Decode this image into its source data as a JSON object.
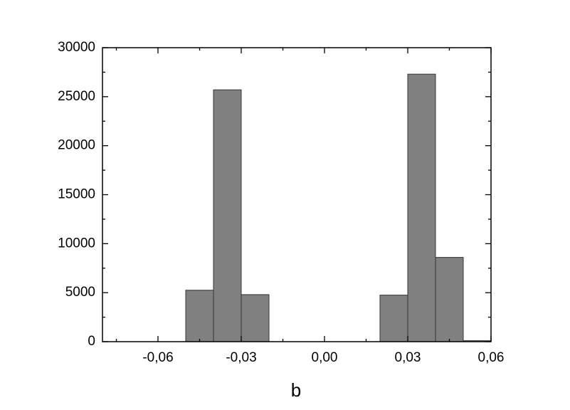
{
  "chart_data": {
    "type": "histogram",
    "x_label": "b",
    "bins": [
      -0.08,
      -0.07,
      -0.06,
      -0.05,
      -0.04,
      -0.03,
      -0.02,
      -0.01,
      0.0,
      0.01,
      0.02,
      0.03,
      0.04,
      0.05,
      0.06
    ],
    "values": [
      0,
      0,
      0,
      5250,
      25700,
      4800,
      0,
      0,
      0,
      0,
      4750,
      27300,
      8600,
      100
    ],
    "color": "#808080",
    "xlim": [
      -0.08,
      0.06
    ],
    "xticks": [
      {
        "value": -0.06,
        "label": "-0,06"
      },
      {
        "value": -0.03,
        "label": "-0,03"
      },
      {
        "value": 0.0,
        "label": "0,00"
      },
      {
        "value": 0.03,
        "label": "0,03"
      },
      {
        "value": 0.06,
        "label": "0,06"
      }
    ],
    "xminorticks": [
      -0.075,
      -0.045,
      -0.015,
      0.015,
      0.045
    ],
    "ylim": [
      0,
      30000
    ],
    "yticks": [
      0,
      5000,
      10000,
      15000,
      20000,
      25000,
      30000
    ],
    "yminorticks": [
      2500,
      7500,
      12500,
      17500,
      22500,
      27500
    ]
  }
}
